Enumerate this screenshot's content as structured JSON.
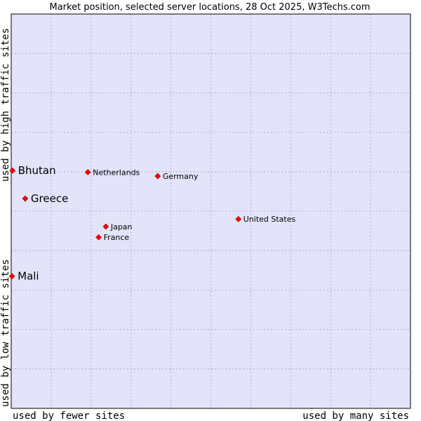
{
  "chart_data": {
    "type": "scatter",
    "title": "Market position, selected server locations, 28 Oct 2025, W3Techs.com",
    "xlabel_left": "used by fewer sites",
    "xlabel_right": "used by many sites",
    "ylabel_bottom": "used by low traffic sites",
    "ylabel_top": "used by high traffic sites",
    "xlim": [
      0,
      100
    ],
    "ylim": [
      0,
      100
    ],
    "grid": true,
    "colors": {
      "background": "#e3e4fa",
      "grid": "#a0a0c0",
      "point": "#ff0000",
      "point_edge": "#b00000"
    },
    "points": [
      {
        "label": "Bhutan",
        "x": 0.3,
        "y": 60.3,
        "emphasis": true
      },
      {
        "label": "Greece",
        "x": 3.5,
        "y": 53.2,
        "emphasis": true
      },
      {
        "label": "Mali",
        "x": 0.2,
        "y": 33.5,
        "emphasis": true
      },
      {
        "label": "Netherlands",
        "x": 19.2,
        "y": 59.9,
        "emphasis": false
      },
      {
        "label": "Germany",
        "x": 36.7,
        "y": 58.9,
        "emphasis": false
      },
      {
        "label": "United States",
        "x": 56.9,
        "y": 48.0,
        "emphasis": false
      },
      {
        "label": "Japan",
        "x": 23.7,
        "y": 46.1,
        "emphasis": false
      },
      {
        "label": "France",
        "x": 21.9,
        "y": 43.4,
        "emphasis": false
      }
    ]
  }
}
